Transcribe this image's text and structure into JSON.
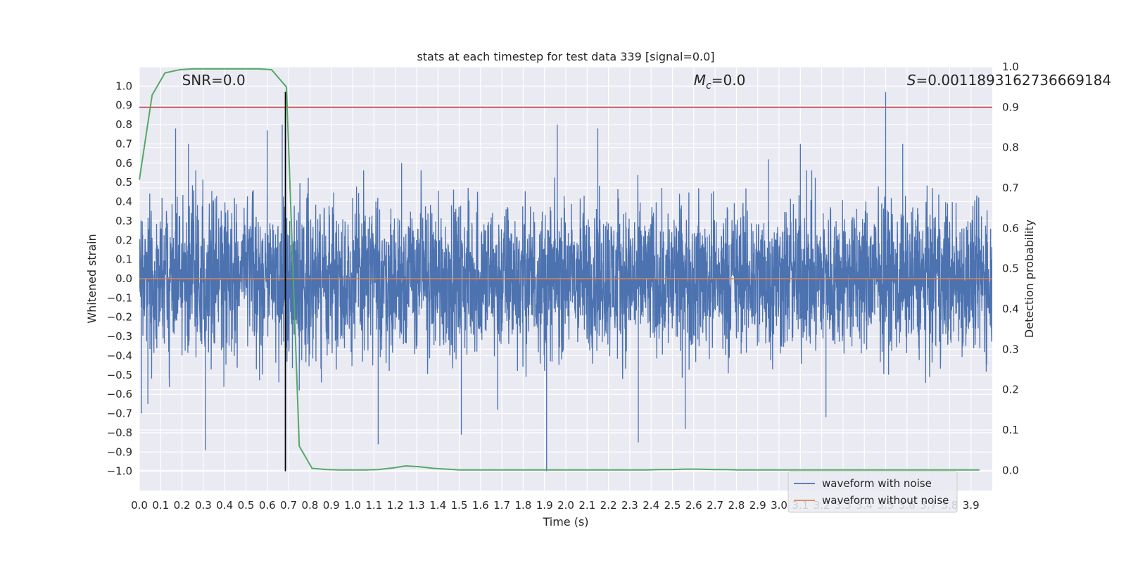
{
  "chart_data": {
    "type": "line",
    "title": "stats at each timestep for test data 339 [signal=0.0]",
    "xlabel": "Time (s)",
    "ylabel": "Whitened strain",
    "y2label": "Detection probability",
    "xlim": [
      0.0,
      4.0
    ],
    "ylim": [
      -1.1,
      1.1
    ],
    "y2lim": [
      -0.05,
      1.0
    ],
    "x_ticks": [
      "0.0",
      "0.1",
      "0.2",
      "0.3",
      "0.4",
      "0.5",
      "0.6",
      "0.7",
      "0.8",
      "0.9",
      "1.0",
      "1.1",
      "1.2",
      "1.3",
      "1.4",
      "1.5",
      "1.6",
      "1.7",
      "1.8",
      "1.9",
      "2.0",
      "2.1",
      "2.2",
      "2.3",
      "2.4",
      "2.5",
      "2.6",
      "2.7",
      "2.8",
      "2.9",
      "3.0",
      "3.1",
      "3.2",
      "3.3",
      "3.4",
      "3.5",
      "3.6",
      "3.7",
      "3.8",
      "3.9"
    ],
    "y_ticks": [
      "1.0",
      "0.9",
      "0.8",
      "0.7",
      "0.6",
      "0.5",
      "0.4",
      "0.3",
      "0.2",
      "0.1",
      "0.0",
      "−0.1",
      "−0.2",
      "−0.3",
      "−0.4",
      "−0.5",
      "−0.6",
      "−0.7",
      "−0.8",
      "−0.9",
      "−1.0"
    ],
    "y2_ticks": [
      "0.0",
      "0.1",
      "0.2",
      "0.3",
      "0.4",
      "0.5",
      "0.6",
      "0.7",
      "0.8",
      "0.9",
      "1.0"
    ],
    "grid": true,
    "legend_position": "lower-right",
    "annotations": {
      "snr": "SNR=0.0",
      "mc_symbol": "M",
      "mc_sub": "c",
      "mc_value": "=0.0",
      "s_symbol": "S",
      "s_value": "=0.0011893162736669184"
    },
    "series": [
      {
        "name": "waveform with noise",
        "color": "#4c72b0",
        "style": "dense-noise",
        "typical_range": [
          -0.45,
          0.45
        ],
        "spikes": [
          {
            "x": 0.01,
            "y": -0.7
          },
          {
            "x": 0.04,
            "y": -0.65
          },
          {
            "x": 0.14,
            "y": -0.52
          },
          {
            "x": 0.17,
            "y": 0.78
          },
          {
            "x": 0.23,
            "y": 0.7
          },
          {
            "x": 0.31,
            "y": -0.89
          },
          {
            "x": 0.6,
            "y": 0.77
          },
          {
            "x": 0.67,
            "y": 0.8
          },
          {
            "x": 0.75,
            "y": -0.58
          },
          {
            "x": 1.0,
            "y": 0.42
          },
          {
            "x": 1.12,
            "y": -0.86
          },
          {
            "x": 1.23,
            "y": 0.6
          },
          {
            "x": 1.51,
            "y": -0.81
          },
          {
            "x": 1.68,
            "y": -0.68
          },
          {
            "x": 1.91,
            "y": -1.0
          },
          {
            "x": 1.96,
            "y": 0.8
          },
          {
            "x": 2.15,
            "y": 0.78
          },
          {
            "x": 2.34,
            "y": -0.85
          },
          {
            "x": 2.56,
            "y": -0.78
          },
          {
            "x": 2.95,
            "y": 0.62
          },
          {
            "x": 3.1,
            "y": 0.7
          },
          {
            "x": 3.22,
            "y": -0.72
          },
          {
            "x": 3.5,
            "y": 0.97
          },
          {
            "x": 3.58,
            "y": 0.7
          }
        ]
      },
      {
        "name": "waveform without noise",
        "color": "#dd8452",
        "x": [
          0.0,
          4.0
        ],
        "y": [
          0.0,
          0.0
        ]
      },
      {
        "name": "detection probability",
        "color": "#55a868",
        "axis": "right",
        "x": [
          0.0,
          0.06,
          0.12,
          0.19,
          0.25,
          0.31,
          0.38,
          0.44,
          0.5,
          0.56,
          0.62,
          0.69,
          0.75,
          0.81,
          0.88,
          0.94,
          1.0,
          1.06,
          1.12,
          1.19,
          1.25,
          1.31,
          1.38,
          1.44,
          1.5,
          1.56,
          1.62,
          1.69,
          1.75,
          1.81,
          1.88,
          1.94,
          2.0,
          2.06,
          2.12,
          2.19,
          2.25,
          2.31,
          2.38,
          2.44,
          2.5,
          2.56,
          2.62,
          2.69,
          2.75,
          2.81,
          2.88,
          2.94,
          3.0,
          3.06,
          3.12,
          3.19,
          3.25,
          3.31,
          3.38,
          3.44,
          3.5,
          3.56,
          3.62,
          3.69,
          3.75,
          3.81,
          3.88,
          3.94
        ],
        "y": [
          0.72,
          0.93,
          0.985,
          0.993,
          0.995,
          0.995,
          0.995,
          0.995,
          0.995,
          0.995,
          0.993,
          0.95,
          0.06,
          0.005,
          0.002,
          0.001,
          0.001,
          0.001,
          0.002,
          0.006,
          0.011,
          0.009,
          0.005,
          0.003,
          0.001,
          0.001,
          0.001,
          0.001,
          0.001,
          0.001,
          0.001,
          0.001,
          0.001,
          0.001,
          0.001,
          0.001,
          0.001,
          0.001,
          0.001,
          0.002,
          0.002,
          0.003,
          0.003,
          0.002,
          0.002,
          0.001,
          0.001,
          0.001,
          0.001,
          0.001,
          0.001,
          0.001,
          0.001,
          0.001,
          0.001,
          0.001,
          0.001,
          0.001,
          0.001,
          0.001,
          0.001,
          0.001,
          0.001,
          0.001
        ]
      }
    ],
    "reference_lines": [
      {
        "orientation": "horizontal",
        "axis": "right",
        "value": 0.9,
        "color": "#c44e52"
      },
      {
        "orientation": "vertical",
        "value": 0.685,
        "y_range": [
          -1.0,
          0.97
        ],
        "color": "#000000"
      }
    ]
  }
}
